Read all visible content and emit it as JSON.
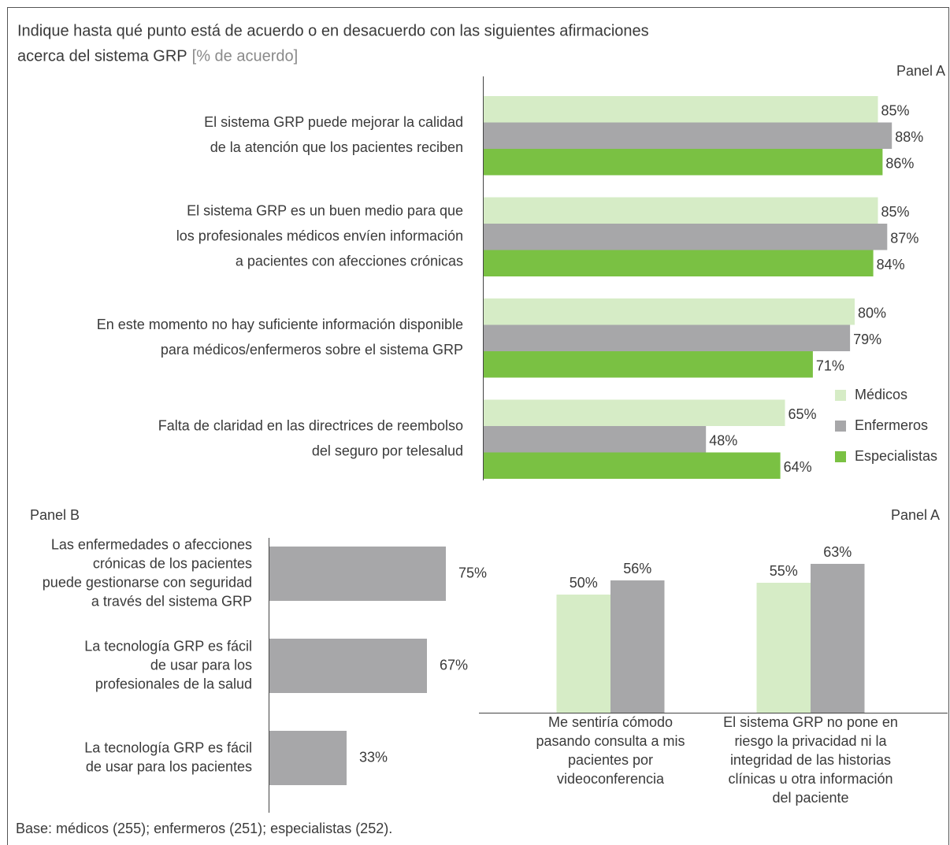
{
  "chart_data": [
    {
      "type": "bar",
      "orientation": "horizontal",
      "title": [
        "Indique hasta qué punto está de acuerdo o en desacuerdo con las siguientes afirmaciones",
        "acerca del sistema GRP"
      ],
      "subtitle": "[% de acuerdo]",
      "panel": "Panel A",
      "categories": [
        [
          "El sistema GRP puede mejorar la calidad",
          "de la atención que los pacientes reciben"
        ],
        [
          "El sistema GRP es un buen medio para que",
          "los profesionales médicos envíen información",
          "a pacientes con afecciones crónicas"
        ],
        [
          "En este momento no hay suficiente información disponible",
          "para médicos/enfermeros sobre el sistema GRP"
        ],
        [
          "Falta de claridad en las directrices de reembolso",
          "del seguro por telesalud"
        ]
      ],
      "series": [
        {
          "name": "Médicos",
          "color": "#d6ecc6",
          "values": [
            85,
            85,
            80,
            65
          ],
          "value_labels": [
            "85%",
            "85%",
            "80%",
            "65%"
          ]
        },
        {
          "name": "Enfermeros",
          "color": "#a7a7a9",
          "values": [
            88,
            87,
            79,
            48
          ],
          "value_labels": [
            "88%",
            "87%",
            "79%",
            "48%"
          ]
        },
        {
          "name": "Especialistas",
          "color": "#7ac143",
          "values": [
            86,
            84,
            71,
            64
          ],
          "value_labels": [
            "86%",
            "84%",
            "71%",
            "64%"
          ]
        }
      ],
      "xlim": [
        0,
        100
      ],
      "legend": "lower right"
    },
    {
      "type": "bar",
      "orientation": "horizontal",
      "panel": "Panel B",
      "categories": [
        [
          "Las enfermedades o afecciones",
          "crónicas de los pacientes",
          "puede gestionarse con seguridad",
          "a través del sistema GRP"
        ],
        [
          "La tecnología GRP es fácil",
          "de usar para los",
          "profesionales de la salud"
        ],
        [
          "La tecnología GRP es fácil",
          "de usar para los pacientes"
        ]
      ],
      "values": [
        75,
        67,
        33
      ],
      "value_labels": [
        "75%",
        "67%",
        "33%"
      ],
      "color": "#a7a7a9",
      "xlim": [
        0,
        100
      ]
    },
    {
      "type": "bar",
      "orientation": "vertical",
      "panel": "Panel A",
      "categories": [
        [
          "Me sentiría cómodo",
          "pasando consulta a mis",
          "pacientes por",
          "videoconferencia"
        ],
        [
          "El sistema GRP no pone en",
          "riesgo la privacidad ni la",
          "integridad de las historias",
          "clínicas u otra información",
          "del paciente"
        ]
      ],
      "series": [
        {
          "color": "#d6ecc6",
          "values": [
            50,
            55
          ],
          "value_labels": [
            "50%",
            "55%"
          ]
        },
        {
          "color": "#a7a7a9",
          "values": [
            56,
            63
          ],
          "value_labels": [
            "56%",
            "63%"
          ]
        }
      ],
      "ylim": [
        0,
        100
      ]
    }
  ],
  "footer": "Base: médicos (255); enfermeros (251); especialistas (252)."
}
